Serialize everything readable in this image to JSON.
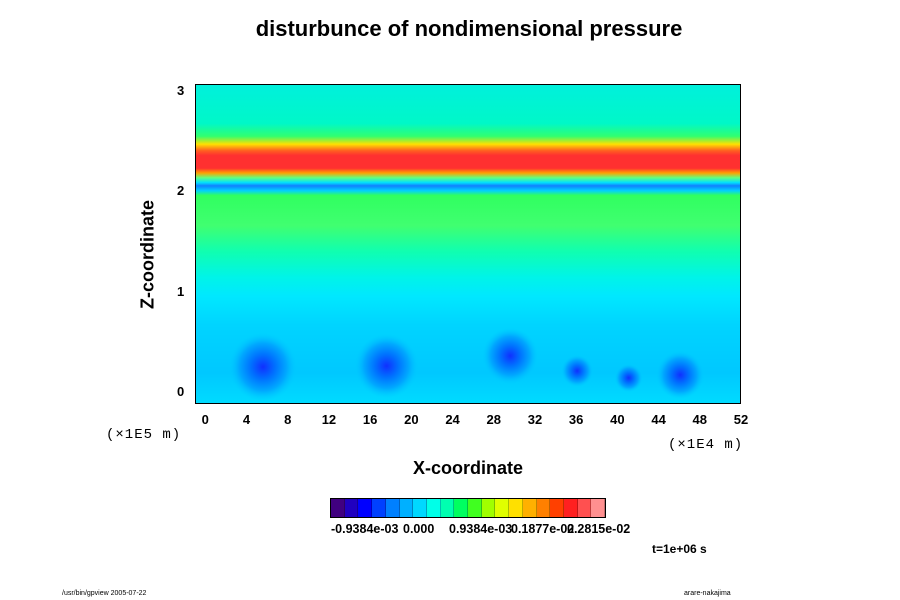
{
  "colors": {
    "background": "#00f0e0",
    "red_band": "#ff3030",
    "blue_band": "#1ec0ff",
    "green_band": "#20ff40",
    "low_field": "#28e6ff",
    "vortex": "#0060ff"
  },
  "chart_data": {
    "type": "heatmap",
    "title": "disturbunce of nondimensional pressure",
    "xlabel": "X-coordinate",
    "ylabel": "Z-coordinate",
    "x_scale": "(×1E4 m)",
    "y_scale": "(×1E5 m)",
    "xlim": [
      -1,
      52
    ],
    "ylim": [
      -0.12,
      3.07
    ],
    "x_ticks": [
      "0",
      "4",
      "8",
      "12",
      "16",
      "20",
      "24",
      "28",
      "32",
      "36",
      "40",
      "44",
      "48",
      "52"
    ],
    "y_ticks": [
      "0",
      "1",
      "2",
      "3"
    ],
    "colorbar_labels": [
      "-0.9384e-03",
      "0.000",
      "0.9384e-03",
      "0.1877e-02",
      "0.2815e-02"
    ],
    "colorbar_colors": [
      "#400080",
      "#2000c0",
      "#0000ff",
      "#0040ff",
      "#0080ff",
      "#00b0ff",
      "#00d8ff",
      "#00ffe8",
      "#00ffb0",
      "#00ff60",
      "#40ff20",
      "#a0ff00",
      "#e0ff00",
      "#ffe000",
      "#ffb000",
      "#ff8000",
      "#ff4000",
      "#ff2020",
      "#ff5050",
      "#ff9090"
    ],
    "features": [
      {
        "z": 2.3,
        "description": "red band"
      },
      {
        "z": 2.1,
        "description": "blue band"
      },
      {
        "z": 2.0,
        "description": "green band"
      }
    ],
    "annotation": "t=1e+06 s"
  },
  "footer": {
    "left": "/usr/bin/gpview 2005-07-22",
    "right": "arare-nakajima"
  }
}
